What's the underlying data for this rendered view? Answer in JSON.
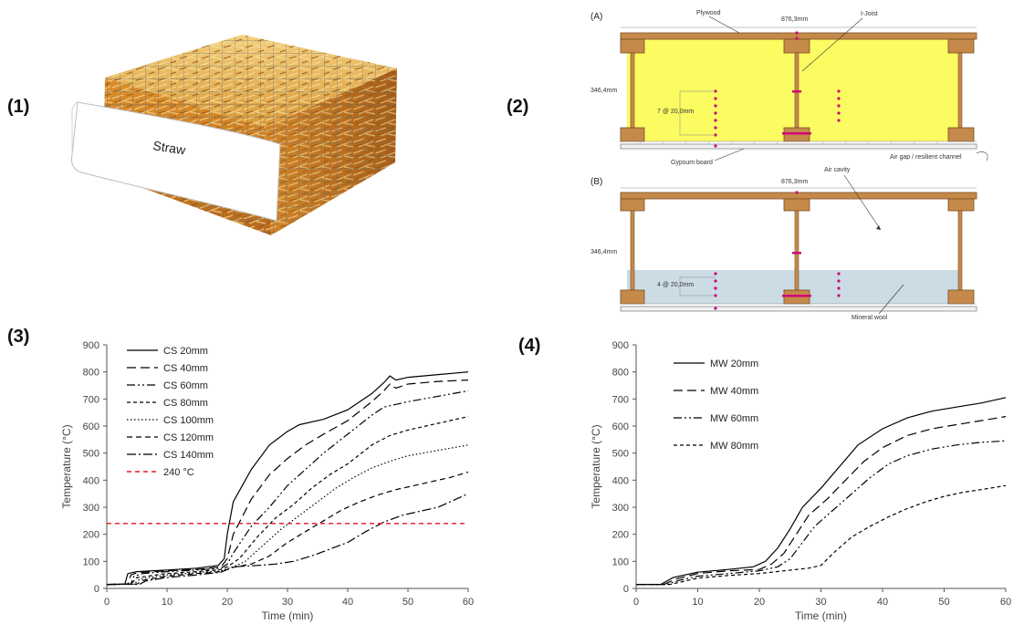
{
  "panel_labels": [
    "(1)",
    "(2)",
    "(3)",
    "(4)"
  ],
  "photo": {
    "card_label": "Straw"
  },
  "diagram": {
    "a_label": "(A)",
    "b_label": "(B)",
    "plywood": "Plywood",
    "ijoist": "I-Joist",
    "width_a": "876,3mm",
    "height_a": "346,4mm",
    "spacing_a": "7 @ 20,0mm",
    "gypsum": "Gypsum board",
    "airgap": "Air gap / resilient channel",
    "width_b": "876,3mm",
    "height_b": "346,4mm",
    "air_cavity": "Air cavity",
    "spacing_b": "4 @ 20,0mm",
    "mineral_wool": "Mineral wool",
    "colors": {
      "wood": "#c58a4a",
      "straw_fill": "#fbfb62",
      "wool_fill": "#cbdce4",
      "marker": "#d1007a"
    }
  },
  "chart_data": [
    {
      "type": "line",
      "xlabel": "Time (min)",
      "ylabel": "Temperature (°C)",
      "xlim": [
        0,
        60
      ],
      "ylim": [
        0,
        900
      ],
      "xticks": [
        0,
        10,
        20,
        30,
        40,
        50,
        60
      ],
      "yticks": [
        0,
        100,
        200,
        300,
        400,
        500,
        600,
        700,
        800,
        900
      ],
      "grid": false,
      "legend_position": "top-left",
      "series": [
        {
          "name": "CS 20mm",
          "dash": "solid",
          "color": "#000000",
          "points": [
            [
              0,
              15
            ],
            [
              3,
              16
            ],
            [
              3.5,
              55
            ],
            [
              5,
              62
            ],
            [
              10,
              68
            ],
            [
              15,
              75
            ],
            [
              18.5,
              85
            ],
            [
              19.5,
              110
            ],
            [
              20,
              200
            ],
            [
              21,
              320
            ],
            [
              24,
              440
            ],
            [
              27,
              530
            ],
            [
              30,
              580
            ],
            [
              32,
              605
            ],
            [
              36,
              625
            ],
            [
              40,
              660
            ],
            [
              44,
              720
            ],
            [
              46,
              760
            ],
            [
              47,
              785
            ],
            [
              48,
              770
            ],
            [
              50,
              780
            ],
            [
              55,
              790
            ],
            [
              60,
              800
            ]
          ]
        },
        {
          "name": "CS 40mm",
          "dash": "long-dash",
          "color": "#000000",
          "points": [
            [
              0,
              15
            ],
            [
              3.5,
              16
            ],
            [
              4,
              50
            ],
            [
              5,
              58
            ],
            [
              10,
              65
            ],
            [
              15,
              70
            ],
            [
              19,
              80
            ],
            [
              20,
              110
            ],
            [
              21,
              200
            ],
            [
              24,
              330
            ],
            [
              27,
              420
            ],
            [
              30,
              480
            ],
            [
              33,
              530
            ],
            [
              36,
              570
            ],
            [
              40,
              620
            ],
            [
              44,
              690
            ],
            [
              46,
              730
            ],
            [
              47,
              755
            ],
            [
              48,
              740
            ],
            [
              50,
              755
            ],
            [
              55,
              765
            ],
            [
              60,
              770
            ]
          ]
        },
        {
          "name": "CS 60mm",
          "dash": "dash-dot-dot",
          "color": "#000000",
          "points": [
            [
              0,
              15
            ],
            [
              4,
              16
            ],
            [
              4.5,
              45
            ],
            [
              6,
              55
            ],
            [
              10,
              62
            ],
            [
              15,
              68
            ],
            [
              19,
              75
            ],
            [
              20,
              90
            ],
            [
              21,
              130
            ],
            [
              24,
              230
            ],
            [
              27,
              300
            ],
            [
              30,
              380
            ],
            [
              33,
              440
            ],
            [
              36,
              500
            ],
            [
              40,
              570
            ],
            [
              44,
              640
            ],
            [
              46,
              670
            ],
            [
              48,
              680
            ],
            [
              50,
              690
            ],
            [
              55,
              710
            ],
            [
              60,
              730
            ]
          ]
        },
        {
          "name": "CS 80mm",
          "dash": "short-dash",
          "color": "#000000",
          "points": [
            [
              0,
              15
            ],
            [
              4,
              16
            ],
            [
              5,
              40
            ],
            [
              10,
              55
            ],
            [
              15,
              62
            ],
            [
              19,
              70
            ],
            [
              20,
              80
            ],
            [
              22,
              110
            ],
            [
              25,
              190
            ],
            [
              28,
              260
            ],
            [
              31,
              310
            ],
            [
              34,
              370
            ],
            [
              37,
              420
            ],
            [
              40,
              460
            ],
            [
              44,
              530
            ],
            [
              47,
              565
            ],
            [
              50,
              585
            ],
            [
              55,
              610
            ],
            [
              60,
              635
            ]
          ]
        },
        {
          "name": "CS 100mm",
          "dash": "dotted",
          "color": "#000000",
          "points": [
            [
              0,
              15
            ],
            [
              4.5,
              16
            ],
            [
              5.5,
              35
            ],
            [
              10,
              50
            ],
            [
              15,
              58
            ],
            [
              19,
              65
            ],
            [
              21,
              80
            ],
            [
              23,
              100
            ],
            [
              26,
              160
            ],
            [
              29,
              220
            ],
            [
              32,
              270
            ],
            [
              35,
              320
            ],
            [
              38,
              370
            ],
            [
              41,
              410
            ],
            [
              44,
              445
            ],
            [
              47,
              470
            ],
            [
              50,
              490
            ],
            [
              55,
              510
            ],
            [
              60,
              530
            ]
          ]
        },
        {
          "name": "CS 120mm",
          "dash": "dash",
          "color": "#000000",
          "points": [
            [
              0,
              15
            ],
            [
              5,
              16
            ],
            [
              6,
              30
            ],
            [
              10,
              45
            ],
            [
              15,
              55
            ],
            [
              19,
              62
            ],
            [
              21,
              78
            ],
            [
              24,
              90
            ],
            [
              27,
              120
            ],
            [
              30,
              170
            ],
            [
              33,
              210
            ],
            [
              36,
              250
            ],
            [
              39,
              290
            ],
            [
              42,
              320
            ],
            [
              45,
              345
            ],
            [
              48,
              365
            ],
            [
              51,
              380
            ],
            [
              54,
              395
            ],
            [
              57,
              410
            ],
            [
              60,
              430
            ]
          ]
        },
        {
          "name": "CS 140mm",
          "dash": "dash-dot",
          "color": "#000000",
          "points": [
            [
              0,
              15
            ],
            [
              5.5,
              16
            ],
            [
              6.5,
              28
            ],
            [
              10,
              40
            ],
            [
              15,
              50
            ],
            [
              19,
              60
            ],
            [
              21,
              80
            ],
            [
              25,
              85
            ],
            [
              28,
              90
            ],
            [
              31,
              100
            ],
            [
              34,
              120
            ],
            [
              37,
              145
            ],
            [
              40,
              170
            ],
            [
              43,
              210
            ],
            [
              46,
              245
            ],
            [
              49,
              270
            ],
            [
              52,
              285
            ],
            [
              55,
              300
            ],
            [
              58,
              330
            ],
            [
              60,
              350
            ]
          ]
        },
        {
          "name": "240 °C",
          "dash": "red-dash",
          "color": "#e8141c",
          "points": [
            [
              0,
              240
            ],
            [
              60,
              240
            ]
          ]
        }
      ]
    },
    {
      "type": "line",
      "xlabel": "Time (min)",
      "ylabel": "Temperature (°C)",
      "xlim": [
        0,
        60
      ],
      "ylim": [
        0,
        900
      ],
      "xticks": [
        0,
        10,
        20,
        30,
        40,
        50,
        60
      ],
      "yticks": [
        0,
        100,
        200,
        300,
        400,
        500,
        600,
        700,
        800,
        900
      ],
      "grid": false,
      "legend_position": "top-left",
      "series": [
        {
          "name": "MW 20mm",
          "dash": "solid",
          "color": "#000000",
          "points": [
            [
              0,
              15
            ],
            [
              4,
              15
            ],
            [
              6,
              40
            ],
            [
              10,
              60
            ],
            [
              15,
              70
            ],
            [
              19,
              80
            ],
            [
              21,
              100
            ],
            [
              23,
              150
            ],
            [
              25,
              220
            ],
            [
              27,
              300
            ],
            [
              30,
              370
            ],
            [
              33,
              450
            ],
            [
              36,
              530
            ],
            [
              40,
              590
            ],
            [
              44,
              630
            ],
            [
              48,
              655
            ],
            [
              52,
              670
            ],
            [
              56,
              685
            ],
            [
              60,
              705
            ]
          ]
        },
        {
          "name": "MW 40mm",
          "dash": "long-dash",
          "color": "#000000",
          "points": [
            [
              0,
              15
            ],
            [
              4.5,
              15
            ],
            [
              6.5,
              35
            ],
            [
              10,
              55
            ],
            [
              15,
              65
            ],
            [
              20,
              70
            ],
            [
              22,
              90
            ],
            [
              24,
              130
            ],
            [
              26,
              200
            ],
            [
              28,
              270
            ],
            [
              31,
              330
            ],
            [
              34,
              400
            ],
            [
              37,
              470
            ],
            [
              40,
              520
            ],
            [
              44,
              565
            ],
            [
              48,
              590
            ],
            [
              52,
              605
            ],
            [
              56,
              620
            ],
            [
              60,
              635
            ]
          ]
        },
        {
          "name": "MW 60mm",
          "dash": "dash-dot-dot",
          "color": "#000000",
          "points": [
            [
              0,
              15
            ],
            [
              5,
              15
            ],
            [
              7,
              30
            ],
            [
              10,
              45
            ],
            [
              15,
              55
            ],
            [
              20,
              65
            ],
            [
              23,
              80
            ],
            [
              25,
              110
            ],
            [
              27,
              170
            ],
            [
              29,
              230
            ],
            [
              32,
              290
            ],
            [
              35,
              350
            ],
            [
              38,
              410
            ],
            [
              41,
              460
            ],
            [
              44,
              490
            ],
            [
              48,
              515
            ],
            [
              52,
              530
            ],
            [
              56,
              540
            ],
            [
              60,
              545
            ]
          ]
        },
        {
          "name": "MW 80mm",
          "dash": "short-dash",
          "color": "#000000",
          "points": [
            [
              0,
              15
            ],
            [
              5.5,
              15
            ],
            [
              7.5,
              25
            ],
            [
              10,
              38
            ],
            [
              15,
              48
            ],
            [
              20,
              55
            ],
            [
              24,
              65
            ],
            [
              28,
              75
            ],
            [
              30,
              85
            ],
            [
              32,
              130
            ],
            [
              35,
              190
            ],
            [
              38,
              230
            ],
            [
              41,
              265
            ],
            [
              44,
              295
            ],
            [
              47,
              320
            ],
            [
              50,
              340
            ],
            [
              53,
              355
            ],
            [
              56,
              365
            ],
            [
              60,
              380
            ]
          ]
        }
      ]
    }
  ]
}
